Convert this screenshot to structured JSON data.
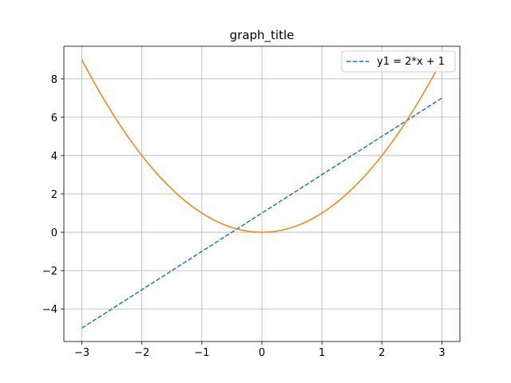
{
  "chart_data": {
    "type": "line",
    "title": "graph_title",
    "xlabel": "",
    "ylabel": "",
    "xlim": [
      -3.3,
      3.3
    ],
    "ylim": [
      -5.7,
      9.7
    ],
    "xticks": [
      -3,
      -2,
      -1,
      0,
      1,
      2,
      3
    ],
    "yticks": [
      -4,
      -2,
      0,
      2,
      4,
      6,
      8
    ],
    "xtick_labels": [
      "−3",
      "−2",
      "−1",
      "0",
      "1",
      "2",
      "3"
    ],
    "ytick_labels": [
      "−4",
      "−2",
      "0",
      "2",
      "4",
      "6",
      "8"
    ],
    "grid": true,
    "legend_placement": "upper right",
    "series": [
      {
        "name": "y1 = 2*x + 1",
        "color": "#1f77b4",
        "style": "dashed",
        "x": [
          -3,
          3
        ],
        "y": [
          -5,
          7
        ]
      },
      {
        "color": "#ff7f0e",
        "style": "solid",
        "x": [
          -3,
          -2.5,
          -2,
          -1.5,
          -1,
          -0.5,
          0,
          0.5,
          1,
          1.5,
          2,
          2.5,
          3
        ],
        "y": [
          9,
          6.25,
          4,
          2.25,
          1,
          0.25,
          0,
          0.25,
          1,
          2.25,
          4,
          6.25,
          9
        ]
      }
    ]
  }
}
